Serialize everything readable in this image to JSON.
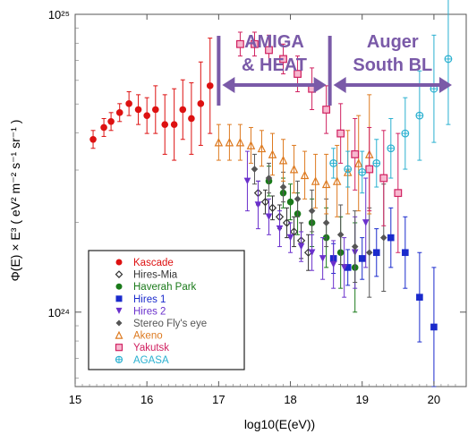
{
  "chart_data": {
    "type": "scatter",
    "xlabel": "log10(E(eV))",
    "ylabel": "Φ(E) × E³ ( eV² m⁻² s⁻¹ sr⁻¹ )",
    "x_ticks": [
      "15",
      "16",
      "17",
      "18",
      "19",
      "20"
    ],
    "y_ticks": [
      "10²⁴",
      "10²⁵"
    ],
    "xlim": [
      15,
      20.45
    ],
    "ylim_log10": [
      23.75,
      25.0
    ],
    "y_scale": "log",
    "regions": [
      {
        "label_lines": [
          "AMIGA",
          "& HEAT"
        ],
        "x_range": [
          17.0,
          18.55
        ]
      },
      {
        "label_lines": [
          "Auger",
          "South BL"
        ],
        "x_range": [
          18.55,
          20.3
        ]
      }
    ],
    "legend_position": "bottom-left",
    "series": [
      {
        "name": "Kascade",
        "marker": "circle",
        "color": "#dd1111",
        "points": [
          [
            15.25,
            24.58,
            0.03
          ],
          [
            15.4,
            24.62,
            0.03
          ],
          [
            15.5,
            24.64,
            0.03
          ],
          [
            15.62,
            24.67,
            0.03
          ],
          [
            15.75,
            24.7,
            0.04
          ],
          [
            15.88,
            24.68,
            0.05
          ],
          [
            16.0,
            24.66,
            0.06
          ],
          [
            16.12,
            24.68,
            0.08
          ],
          [
            16.25,
            24.63,
            0.1
          ],
          [
            16.38,
            24.63,
            0.12
          ],
          [
            16.5,
            24.68,
            0.1
          ],
          [
            16.62,
            24.65,
            0.12
          ],
          [
            16.75,
            24.7,
            0.14
          ],
          [
            16.88,
            24.76,
            0.16
          ]
        ]
      },
      {
        "name": "Hires-Mia",
        "marker": "diamond-open",
        "color": "#333333",
        "points": [
          [
            17.55,
            24.4,
            0.04
          ],
          [
            17.65,
            24.37,
            0.04
          ],
          [
            17.75,
            24.35,
            0.04
          ],
          [
            17.85,
            24.32,
            0.04
          ],
          [
            17.95,
            24.3,
            0.05
          ],
          [
            18.05,
            24.27,
            0.05
          ],
          [
            18.15,
            24.24,
            0.06
          ],
          [
            18.25,
            24.2,
            0.06
          ]
        ]
      },
      {
        "name": "Haverah Park",
        "marker": "circle",
        "color": "#1a7a1a",
        "points": [
          [
            17.7,
            24.44,
            0.05
          ],
          [
            17.9,
            24.4,
            0.05
          ],
          [
            18.0,
            24.37,
            0.06
          ],
          [
            18.1,
            24.33,
            0.07
          ],
          [
            18.3,
            24.3,
            0.08
          ],
          [
            18.5,
            24.25,
            0.1
          ],
          [
            18.7,
            24.2,
            0.12
          ],
          [
            18.9,
            24.15,
            0.15
          ]
        ]
      },
      {
        "name": "Hires 1",
        "marker": "square",
        "color": "#1a2acc",
        "points": [
          [
            18.6,
            24.18,
            0.05
          ],
          [
            18.8,
            24.15,
            0.06
          ],
          [
            19.0,
            24.18,
            0.07
          ],
          [
            19.2,
            24.2,
            0.08
          ],
          [
            19.4,
            24.25,
            0.1
          ],
          [
            19.6,
            24.2,
            0.12
          ],
          [
            19.8,
            24.05,
            0.15
          ],
          [
            20.0,
            23.95,
            0.2
          ]
        ]
      },
      {
        "name": "Hires 2",
        "marker": "triangle-down",
        "color": "#6a30cc",
        "points": [
          [
            17.4,
            24.44,
            0.1
          ],
          [
            17.55,
            24.36,
            0.08
          ],
          [
            17.7,
            24.32,
            0.06
          ],
          [
            17.85,
            24.28,
            0.06
          ],
          [
            18.0,
            24.25,
            0.05
          ],
          [
            18.15,
            24.22,
            0.05
          ],
          [
            18.3,
            24.2,
            0.06
          ],
          [
            18.45,
            24.18,
            0.07
          ],
          [
            18.6,
            24.16,
            0.08
          ],
          [
            18.75,
            24.15,
            0.1
          ],
          [
            18.9,
            24.2,
            0.12
          ],
          [
            19.05,
            24.3,
            0.15
          ]
        ]
      },
      {
        "name": "Stereo Fly's eye",
        "marker": "diamond",
        "color": "#555555",
        "points": [
          [
            17.5,
            24.48,
            0.05
          ],
          [
            17.7,
            24.45,
            0.05
          ],
          [
            17.9,
            24.42,
            0.05
          ],
          [
            18.1,
            24.38,
            0.06
          ],
          [
            18.3,
            24.34,
            0.07
          ],
          [
            18.5,
            24.3,
            0.08
          ],
          [
            18.7,
            24.26,
            0.1
          ],
          [
            18.9,
            24.22,
            0.12
          ],
          [
            19.1,
            24.2,
            0.15
          ],
          [
            19.3,
            24.25,
            0.18
          ]
        ]
      },
      {
        "name": "Akeno",
        "marker": "triangle-open",
        "color": "#dd7a20",
        "points": [
          [
            17.0,
            24.57,
            0.06
          ],
          [
            17.15,
            24.57,
            0.06
          ],
          [
            17.3,
            24.57,
            0.06
          ],
          [
            17.45,
            24.56,
            0.06
          ],
          [
            17.6,
            24.55,
            0.06
          ],
          [
            17.75,
            24.53,
            0.07
          ],
          [
            17.9,
            24.51,
            0.07
          ],
          [
            18.05,
            24.48,
            0.08
          ],
          [
            18.2,
            24.46,
            0.08
          ],
          [
            18.35,
            24.44,
            0.09
          ],
          [
            18.5,
            24.43,
            0.1
          ],
          [
            18.65,
            24.44,
            0.12
          ],
          [
            18.8,
            24.47,
            0.14
          ],
          [
            18.95,
            24.5,
            0.16
          ],
          [
            19.1,
            24.53,
            0.2
          ]
        ]
      },
      {
        "name": "Yakutsk",
        "marker": "square-open",
        "color": "#d02060",
        "points": [
          [
            17.3,
            24.9,
            0.04
          ],
          [
            17.5,
            24.9,
            0.04
          ],
          [
            17.7,
            24.88,
            0.05
          ],
          [
            17.9,
            24.85,
            0.05
          ],
          [
            18.1,
            24.8,
            0.06
          ],
          [
            18.3,
            24.75,
            0.07
          ],
          [
            18.5,
            24.68,
            0.08
          ],
          [
            18.7,
            24.6,
            0.1
          ],
          [
            18.9,
            24.53,
            0.12
          ],
          [
            19.1,
            24.48,
            0.14
          ],
          [
            19.3,
            24.45,
            0.16
          ],
          [
            19.5,
            24.4,
            0.2
          ]
        ]
      },
      {
        "name": "AGASA",
        "marker": "circle-plus",
        "color": "#2ab0d0",
        "points": [
          [
            18.6,
            24.5,
            0.05
          ],
          [
            18.8,
            24.48,
            0.06
          ],
          [
            19.0,
            24.47,
            0.07
          ],
          [
            19.2,
            24.5,
            0.08
          ],
          [
            19.4,
            24.55,
            0.1
          ],
          [
            19.6,
            24.6,
            0.12
          ],
          [
            19.8,
            24.66,
            0.15
          ],
          [
            20.0,
            24.75,
            0.18
          ],
          [
            20.2,
            24.85,
            0.22
          ]
        ]
      }
    ]
  }
}
